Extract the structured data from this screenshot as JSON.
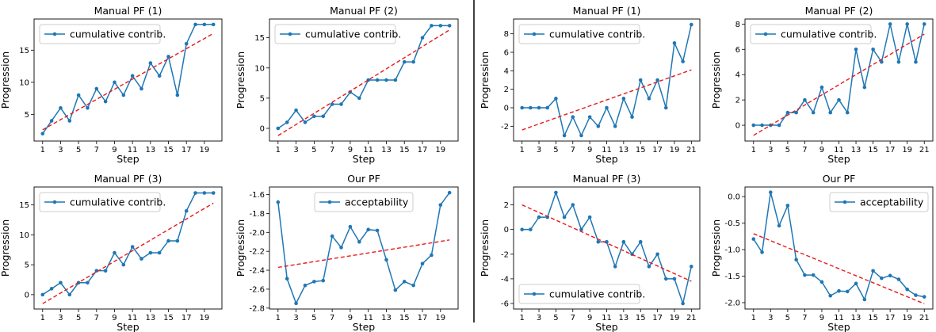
{
  "colors": {
    "series": "#1f77b4",
    "trend": "#e8191c",
    "axis": "#000000",
    "divider": "#000000"
  },
  "chart_data": [
    {
      "type": "line",
      "title": "Manual PF (1)",
      "xlabel": "Step",
      "ylabel": "Progression",
      "x": [
        1,
        2,
        3,
        4,
        5,
        6,
        7,
        8,
        9,
        10,
        11,
        12,
        13,
        14,
        15,
        16,
        17,
        18,
        19,
        20
      ],
      "series": [
        {
          "name": "cumulative contrib.",
          "values": [
            2,
            4,
            6,
            4,
            8,
            6,
            9,
            7,
            10,
            8,
            11,
            9,
            13,
            11,
            14,
            8,
            16,
            19,
            19,
            19
          ]
        }
      ],
      "trend": [
        2.6,
        17.6
      ],
      "xticks": [
        "1",
        "3",
        "5",
        "7",
        "9",
        "11",
        "13",
        "15",
        "17",
        "19"
      ],
      "xtick_values": [
        1,
        3,
        5,
        7,
        9,
        11,
        13,
        15,
        17,
        19
      ],
      "yticks": [
        "5",
        "10",
        "15"
      ],
      "ytick_values": [
        5,
        10,
        15
      ],
      "xlim": [
        0.05,
        20.95
      ],
      "ylim": [
        0.85,
        19.85
      ],
      "grid": false,
      "legend": "upper left"
    },
    {
      "type": "line",
      "title": "Manual PF (2)",
      "xlabel": "Step",
      "ylabel": "Progression",
      "x": [
        1,
        2,
        3,
        4,
        5,
        6,
        7,
        8,
        9,
        10,
        11,
        12,
        13,
        14,
        15,
        16,
        17,
        18,
        19,
        20
      ],
      "series": [
        {
          "name": "cumulative contrib.",
          "values": [
            0,
            1,
            3,
            1,
            2,
            2,
            4,
            4,
            6,
            5,
            8,
            8,
            8,
            8,
            11,
            11,
            15,
            17,
            17,
            17
          ]
        }
      ],
      "trend": [
        -1.2,
        16.3
      ],
      "xticks": [
        "1",
        "3",
        "5",
        "7",
        "9",
        "11",
        "13",
        "15",
        "17",
        "19"
      ],
      "xtick_values": [
        1,
        3,
        5,
        7,
        9,
        11,
        13,
        15,
        17,
        19
      ],
      "yticks": [
        "0",
        "5",
        "10",
        "15"
      ],
      "ytick_values": [
        0,
        5,
        10,
        15
      ],
      "xlim": [
        0.05,
        20.95
      ],
      "ylim": [
        -2.1,
        18.1
      ],
      "grid": false,
      "legend": "upper left"
    },
    {
      "type": "line",
      "title": "Manual PF (1)",
      "xlabel": "Step",
      "ylabel": "Progression",
      "x": [
        1,
        2,
        3,
        4,
        5,
        6,
        7,
        8,
        9,
        10,
        11,
        12,
        13,
        14,
        15,
        16,
        17,
        18,
        19,
        20,
        21
      ],
      "series": [
        {
          "name": "cumulative contrib.",
          "values": [
            0,
            0,
            0,
            0,
            1,
            -3,
            -1,
            -3,
            -1,
            -2,
            0,
            -2,
            1,
            -1,
            3,
            1,
            3,
            0,
            7,
            5,
            9
          ]
        }
      ],
      "trend": [
        -2.4,
        4.1
      ],
      "xticks": [
        "1",
        "3",
        "5",
        "7",
        "9",
        "11",
        "13",
        "15",
        "17",
        "19",
        "21"
      ],
      "xtick_values": [
        1,
        3,
        5,
        7,
        9,
        11,
        13,
        15,
        17,
        19,
        21
      ],
      "yticks": [
        "-2",
        "0",
        "2",
        "4",
        "6",
        "8"
      ],
      "ytick_values": [
        -2,
        0,
        2,
        4,
        6,
        8
      ],
      "xlim": [
        0.0,
        22.0
      ],
      "ylim": [
        -3.6,
        9.6
      ],
      "grid": false,
      "legend": "upper left"
    },
    {
      "type": "line",
      "title": "Manual PF (2)",
      "xlabel": "Step",
      "ylabel": "Progression",
      "x": [
        1,
        2,
        3,
        4,
        5,
        6,
        7,
        8,
        9,
        10,
        11,
        12,
        13,
        14,
        15,
        16,
        17,
        18,
        19,
        20,
        21
      ],
      "series": [
        {
          "name": "cumulative contrib.",
          "values": [
            0,
            0,
            0,
            0,
            1,
            1,
            2,
            1,
            3,
            1,
            2,
            1,
            6,
            3,
            6,
            5,
            8,
            5,
            8,
            5,
            8
          ]
        }
      ],
      "trend": [
        -0.8,
        7.2
      ],
      "xticks": [
        "1",
        "3",
        "5",
        "7",
        "9",
        "11",
        "13",
        "15",
        "17",
        "19",
        "21"
      ],
      "xtick_values": [
        1,
        3,
        5,
        7,
        9,
        11,
        13,
        15,
        17,
        19,
        21
      ],
      "yticks": [
        "0",
        "2",
        "4",
        "6",
        "8"
      ],
      "ytick_values": [
        0,
        2,
        4,
        6,
        8
      ],
      "xlim": [
        0.0,
        22.0
      ],
      "ylim": [
        -1.25,
        8.4
      ],
      "grid": false,
      "legend": "upper left"
    },
    {
      "type": "line",
      "title": "Manual PF (3)",
      "xlabel": "Step",
      "ylabel": "Progression",
      "x": [
        1,
        2,
        3,
        4,
        5,
        6,
        7,
        8,
        9,
        10,
        11,
        12,
        13,
        14,
        15,
        16,
        17,
        18,
        19,
        20
      ],
      "series": [
        {
          "name": "cumulative contrib.",
          "values": [
            0,
            1,
            2,
            0,
            2,
            2,
            4,
            4,
            7,
            5,
            8,
            6,
            7,
            7,
            9,
            9,
            14,
            17,
            17,
            17
          ]
        }
      ],
      "trend": [
        -1.5,
        15.3
      ],
      "xticks": [
        "1",
        "3",
        "5",
        "7",
        "9",
        "11",
        "13",
        "15",
        "17",
        "19"
      ],
      "xtick_values": [
        1,
        3,
        5,
        7,
        9,
        11,
        13,
        15,
        17,
        19
      ],
      "yticks": [
        "0",
        "5",
        "10",
        "15"
      ],
      "ytick_values": [
        0,
        5,
        10,
        15
      ],
      "xlim": [
        0.05,
        20.95
      ],
      "ylim": [
        -2.4,
        18.0
      ],
      "grid": false,
      "legend": "upper left"
    },
    {
      "type": "line",
      "title": "Our PF",
      "xlabel": "Step",
      "ylabel": "Progression",
      "x": [
        1,
        2,
        3,
        4,
        5,
        6,
        7,
        8,
        9,
        10,
        11,
        12,
        13,
        14,
        15,
        16,
        17,
        18,
        19,
        20
      ],
      "series": [
        {
          "name": "acceptability",
          "values": [
            -1.68,
            -2.49,
            -2.75,
            -2.56,
            -2.52,
            -2.51,
            -2.04,
            -2.16,
            -1.94,
            -2.1,
            -1.97,
            -1.98,
            -2.29,
            -2.61,
            -2.52,
            -2.56,
            -2.33,
            -2.24,
            -1.71,
            -1.58
          ]
        }
      ],
      "trend": [
        -2.37,
        -2.08
      ],
      "xticks": [
        "1",
        "3",
        "5",
        "7",
        "9",
        "11",
        "13",
        "15",
        "17",
        "19"
      ],
      "xtick_values": [
        1,
        3,
        5,
        7,
        9,
        11,
        13,
        15,
        17,
        19
      ],
      "yticks": [
        "-2.8",
        "-2.6",
        "-2.4",
        "-2.2",
        "-2.0",
        "-1.8",
        "-1.6"
      ],
      "ytick_values": [
        -2.8,
        -2.6,
        -2.4,
        -2.2,
        -2.0,
        -1.8,
        -1.6
      ],
      "xlim": [
        0.05,
        20.95
      ],
      "ylim": [
        -2.81,
        -1.52
      ],
      "grid": false,
      "legend": "upper center"
    },
    {
      "type": "line",
      "title": "Manual PF (3)",
      "xlabel": "Step",
      "ylabel": "Progression",
      "x": [
        1,
        2,
        3,
        4,
        5,
        6,
        7,
        8,
        9,
        10,
        11,
        12,
        13,
        14,
        15,
        16,
        17,
        18,
        19,
        20,
        21
      ],
      "series": [
        {
          "name": "cumulative contrib.",
          "values": [
            0,
            0,
            1,
            1,
            3,
            1,
            2,
            0,
            1,
            -1,
            -1,
            -3,
            -1,
            -2,
            -1,
            -3,
            -2,
            -4,
            -4,
            -6,
            -3
          ]
        }
      ],
      "trend": [
        2.0,
        -4.2
      ],
      "xticks": [
        "1",
        "3",
        "5",
        "7",
        "9",
        "11",
        "13",
        "15",
        "17",
        "19",
        "21"
      ],
      "xtick_values": [
        1,
        3,
        5,
        7,
        9,
        11,
        13,
        15,
        17,
        19,
        21
      ],
      "yticks": [
        "-6",
        "-4",
        "-2",
        "0",
        "2"
      ],
      "ytick_values": [
        -6,
        -4,
        -2,
        0,
        2
      ],
      "xlim": [
        0.0,
        22.0
      ],
      "ylim": [
        -6.45,
        3.45
      ],
      "grid": false,
      "legend": "lower left"
    },
    {
      "type": "line",
      "title": "Our PF",
      "xlabel": "Step",
      "ylabel": "Progression",
      "x": [
        1,
        2,
        3,
        4,
        5,
        6,
        7,
        8,
        9,
        10,
        11,
        12,
        13,
        14,
        15,
        16,
        17,
        18,
        19,
        20,
        21
      ],
      "series": [
        {
          "name": "acceptability",
          "values": [
            -0.8,
            -1.05,
            0.08,
            -0.55,
            -0.17,
            -1.19,
            -1.48,
            -1.48,
            -1.61,
            -1.87,
            -1.78,
            -1.79,
            -1.64,
            -1.94,
            -1.4,
            -1.54,
            -1.49,
            -1.56,
            -1.75,
            -1.86,
            -1.89
          ]
        }
      ],
      "trend": [
        -0.7,
        -2.02
      ],
      "xticks": [
        "1",
        "3",
        "5",
        "7",
        "9",
        "11",
        "13",
        "15",
        "17",
        "19",
        "21"
      ],
      "xtick_values": [
        1,
        3,
        5,
        7,
        9,
        11,
        13,
        15,
        17,
        19,
        21
      ],
      "yticks": [
        "-2.0",
        "-1.5",
        "-1.0",
        "-0.5",
        "0.0"
      ],
      "ytick_values": [
        -2.0,
        -1.5,
        -1.0,
        -0.5,
        0.0
      ],
      "xlim": [
        0.0,
        22.0
      ],
      "ylim": [
        -2.12,
        0.18
      ],
      "grid": false,
      "legend": "upper right"
    }
  ]
}
